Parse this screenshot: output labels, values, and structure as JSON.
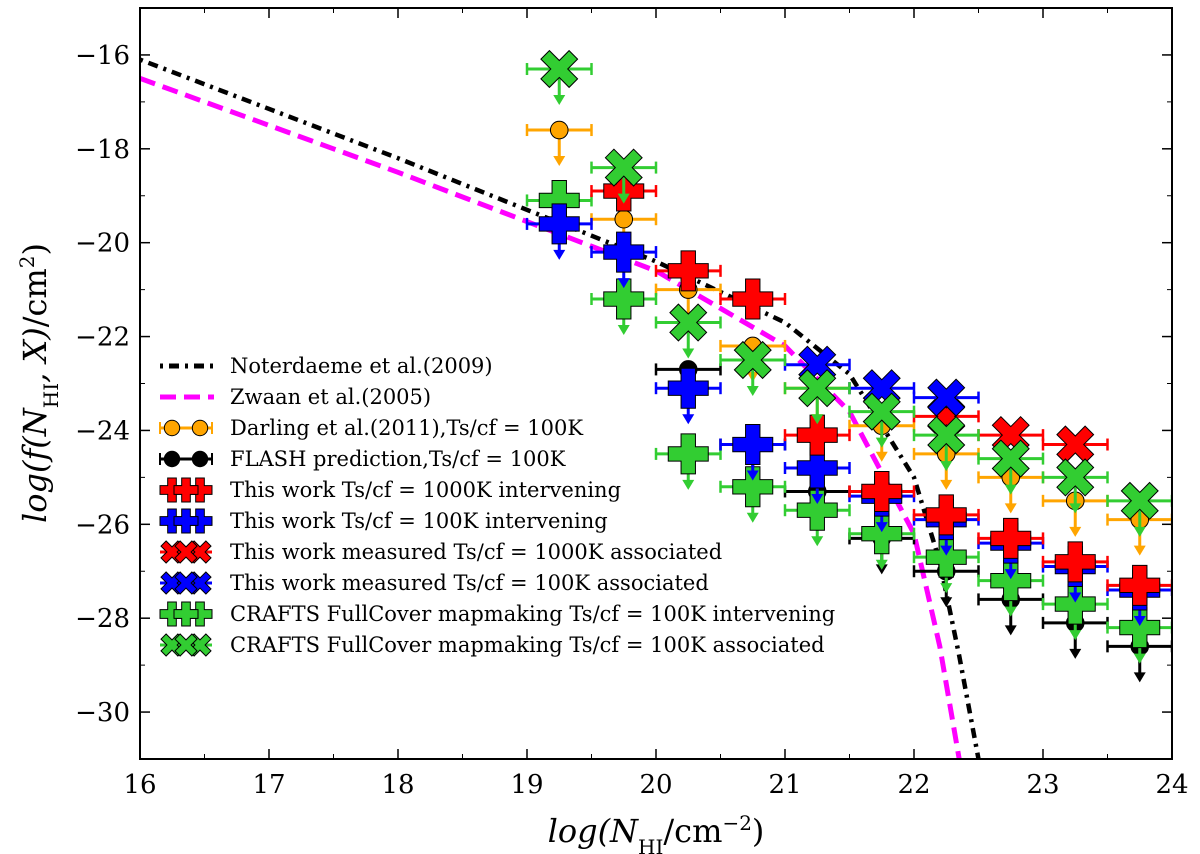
{
  "chart_data": {
    "type": "scatter",
    "xlabel": "log(N_HI/cm^-2)",
    "ylabel": "log(f(N_HI, X)/cm^2)",
    "xlim": [
      16,
      24
    ],
    "ylim": [
      -31,
      -15
    ],
    "xticks": [
      "16",
      "17",
      "18",
      "19",
      "20",
      "21",
      "22",
      "23",
      "24"
    ],
    "yticks": [
      "-16",
      "-18",
      "-20",
      "-22",
      "-24",
      "-26",
      "-28",
      "-30"
    ],
    "legend_position": "bottom-left",
    "legend_entries": [
      "Noterdaeme et al.(2009)",
      "Zwaan et al.(2005)",
      "Darling et al.(2011),Ts/cf = 100K",
      "FLASH prediction,Ts/cf = 100K",
      "This work Ts/cf = 1000K intervening",
      "This work Ts/cf = 100K intervening",
      "This work measured Ts/cf = 1000K associated",
      "This work measured Ts/cf = 100K associated",
      "CRAFTS FullCover mapmaking Ts/cf = 100K intervening",
      "CRAFTS FullCover mapmaking Ts/cf = 100K associated"
    ],
    "colors": {
      "noterdaeme": "#000000",
      "zwaan": "#ff00ff",
      "darling": "#ffa500",
      "flash": "#000000",
      "red": "#ff0000",
      "blue": "#0000ff",
      "green": "#32cd32"
    },
    "curves": [
      {
        "name": "Noterdaeme et al.(2009)",
        "style": "dashdot",
        "color": "#000000",
        "x": [
          16,
          18,
          20,
          21,
          21.5,
          22,
          22.2,
          22.35,
          22.5
        ],
        "y": [
          -16.1,
          -18.2,
          -20.4,
          -21.7,
          -22.8,
          -25.0,
          -26.8,
          -28.8,
          -31.0
        ]
      },
      {
        "name": "Zwaan et al.(2005)",
        "style": "dashed",
        "color": "#ff00ff",
        "x": [
          16,
          18,
          20,
          21,
          21.5,
          22,
          22.2,
          22.35
        ],
        "y": [
          -16.5,
          -18.5,
          -20.6,
          -22.2,
          -23.6,
          -26.2,
          -28.6,
          -31.0
        ]
      }
    ],
    "series": [
      {
        "name": "Darling et al.(2011),Ts/cf = 100K",
        "marker": "circle",
        "color": "#ffa500",
        "upper_limit": true,
        "x": [
          19.25,
          19.75,
          20.25,
          20.75,
          21.25,
          21.75,
          22.25,
          22.75,
          23.25,
          23.75
        ],
        "y": [
          -17.6,
          -19.5,
          -21.0,
          -22.2,
          -23.1,
          -23.9,
          -24.5,
          -25.0,
          -25.5,
          -25.9
        ]
      },
      {
        "name": "FLASH prediction,Ts/cf = 100K",
        "marker": "circle",
        "color": "#000000",
        "upper_limit": true,
        "x": [
          20.25,
          20.75,
          21.25,
          21.75,
          22.25,
          22.75,
          23.25,
          23.75
        ],
        "y": [
          -22.7,
          -24.3,
          -25.3,
          -26.3,
          -27.0,
          -27.6,
          -28.1,
          -28.6
        ]
      },
      {
        "name": "This work Ts/cf = 1000K intervening",
        "marker": "plus",
        "color": "#ff0000",
        "upper_limit": false,
        "x": [
          19.75,
          20.25,
          20.75,
          21.25,
          21.75,
          22.25,
          22.75,
          23.25,
          23.75
        ],
        "y": [
          -18.9,
          -20.6,
          -21.2,
          -24.1,
          -25.3,
          -25.8,
          -26.3,
          -26.8,
          -27.3
        ]
      },
      {
        "name": "This work Ts/cf = 100K intervening",
        "marker": "plus",
        "color": "#0000ff",
        "upper_limit": true,
        "x": [
          19.25,
          19.75,
          20.25,
          20.75,
          21.25,
          21.75,
          22.25,
          22.75,
          23.25,
          23.75
        ],
        "y": [
          -19.6,
          -20.2,
          -23.1,
          -24.3,
          -24.8,
          -25.4,
          -25.9,
          -26.4,
          -26.9,
          -27.4
        ]
      },
      {
        "name": "This work measured Ts/cf = 1000K associated",
        "marker": "x",
        "color": "#ff0000",
        "upper_limit": false,
        "x": [
          22.25,
          22.75,
          23.25
        ],
        "y": [
          -23.7,
          -24.1,
          -24.3
        ]
      },
      {
        "name": "This work measured Ts/cf = 100K associated",
        "marker": "x",
        "color": "#0000ff",
        "upper_limit": false,
        "x": [
          21.25,
          21.75,
          22.25
        ],
        "y": [
          -22.6,
          -23.1,
          -23.3
        ]
      },
      {
        "name": "CRAFTS FullCover mapmaking Ts/cf = 100K intervening",
        "marker": "plus",
        "color": "#32cd32",
        "upper_limit": true,
        "x": [
          19.25,
          19.75,
          20.25,
          20.75,
          21.25,
          21.75,
          22.25,
          22.75,
          23.25,
          23.75
        ],
        "y": [
          -19.1,
          -21.2,
          -24.5,
          -25.2,
          -25.7,
          -26.2,
          -26.7,
          -27.2,
          -27.7,
          -28.2
        ]
      },
      {
        "name": "CRAFTS FullCover mapmaking Ts/cf = 100K associated",
        "marker": "x",
        "color": "#32cd32",
        "upper_limit": true,
        "x": [
          19.25,
          19.75,
          20.25,
          20.75,
          21.25,
          21.75,
          22.25,
          22.75,
          23.25,
          23.75
        ],
        "y": [
          -16.3,
          -18.4,
          -21.7,
          -22.5,
          -23.1,
          -23.6,
          -24.1,
          -24.6,
          -25.0,
          -25.5
        ]
      }
    ]
  }
}
